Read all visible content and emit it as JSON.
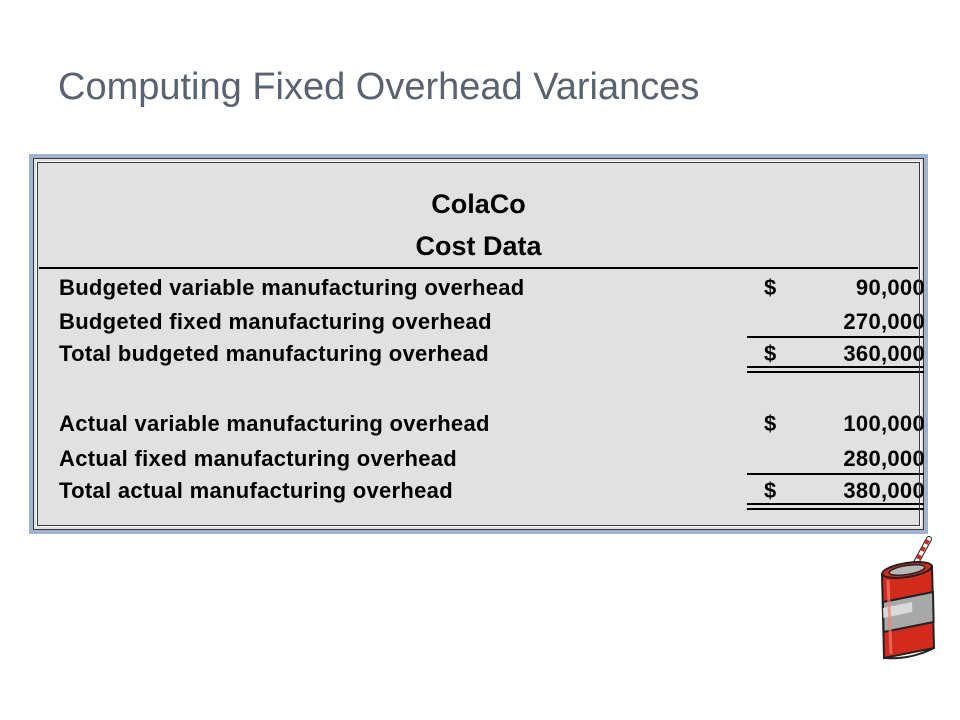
{
  "slide": {
    "title": "Computing Fixed Overhead Variances"
  },
  "table": {
    "company": "ColaCo",
    "subtitle": "Cost Data",
    "rows": [
      {
        "label": "Budgeted variable manufacturing overhead",
        "currency": "$",
        "amount": "90,000"
      },
      {
        "label": "Budgeted fixed manufacturing overhead",
        "currency": "",
        "amount": "270,000"
      },
      {
        "label": "Total budgeted manufacturing overhead",
        "currency": "$",
        "amount": "360,000"
      },
      {
        "label": "Actual variable manufacturing overhead",
        "currency": "$",
        "amount": "100,000"
      },
      {
        "label": "Actual fixed manufacturing overhead",
        "currency": "",
        "amount": "280,000"
      },
      {
        "label": "Total actual manufacturing overhead",
        "currency": "$",
        "amount": "380,000"
      }
    ]
  },
  "colors": {
    "title": "#5a6272",
    "frame": "#9fb4cf",
    "table_bg": "#e1e1e1",
    "can_red": "#d42a1e",
    "can_silver": "#a8a8a8"
  },
  "decor": {
    "icon": "soda-can-icon"
  }
}
